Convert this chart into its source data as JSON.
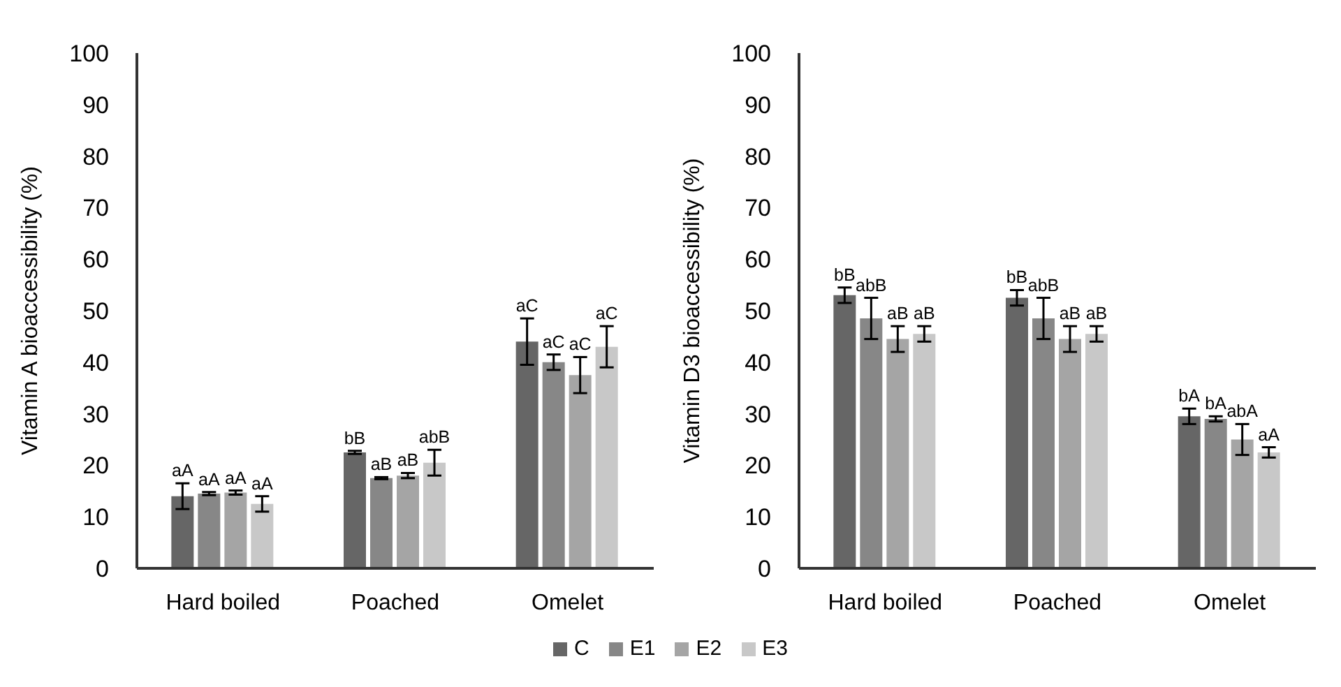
{
  "chart_data": [
    {
      "type": "bar",
      "ylabel": "Vitamin A bioaccessibility (%)",
      "categories": [
        "Hard boiled",
        "Poached",
        "Omelet"
      ],
      "ylim": [
        0,
        100
      ],
      "yticks": [
        0,
        10,
        20,
        30,
        40,
        50,
        60,
        70,
        80,
        90,
        100
      ],
      "legend": "bottom",
      "series": [
        {
          "name": "C",
          "color": "#666666",
          "values": [
            14,
            22.5,
            44
          ],
          "errors": [
            2.5,
            0.3,
            4.5
          ],
          "value_labels": [
            "aA",
            "bB",
            "aC"
          ]
        },
        {
          "name": "E1",
          "color": "#878787",
          "values": [
            14.5,
            17.5,
            40
          ],
          "errors": [
            0.3,
            0.2,
            1.5
          ],
          "value_labels": [
            "aA",
            "aB",
            "aC"
          ]
        },
        {
          "name": "E2",
          "color": "#a5a5a5",
          "values": [
            14.7,
            18,
            37.5
          ],
          "errors": [
            0.4,
            0.5,
            3.5
          ],
          "value_labels": [
            "aA",
            "aB",
            "aC"
          ]
        },
        {
          "name": "E3",
          "color": "#c8c8c8",
          "values": [
            12.5,
            20.5,
            43
          ],
          "errors": [
            1.5,
            2.5,
            4
          ],
          "value_labels": [
            "aA",
            "abB",
            "aC"
          ]
        }
      ]
    },
    {
      "type": "bar",
      "ylabel": "Vitamin D3 bioaccessibility (%)",
      "categories": [
        "Hard boiled",
        "Poached",
        "Omelet"
      ],
      "ylim": [
        0,
        100
      ],
      "yticks": [
        0,
        10,
        20,
        30,
        40,
        50,
        60,
        70,
        80,
        90,
        100
      ],
      "series": [
        {
          "name": "C",
          "color": "#666666",
          "values": [
            53,
            52.5,
            29.5
          ],
          "errors": [
            1.5,
            1.5,
            1.5
          ],
          "value_labels": [
            "bB",
            "bB",
            "bA"
          ]
        },
        {
          "name": "E1",
          "color": "#878787",
          "values": [
            48.5,
            48.5,
            29
          ],
          "errors": [
            4,
            4,
            0.5
          ],
          "value_labels": [
            "abB",
            "abB",
            "bA"
          ]
        },
        {
          "name": "E2",
          "color": "#a5a5a5",
          "values": [
            44.5,
            44.5,
            25
          ],
          "errors": [
            2.5,
            2.5,
            3
          ],
          "value_labels": [
            "aB",
            "aB",
            "abA"
          ]
        },
        {
          "name": "E3",
          "color": "#c8c8c8",
          "values": [
            45.5,
            45.5,
            22.5
          ],
          "errors": [
            1.5,
            1.5,
            1
          ],
          "value_labels": [
            "aB",
            "aB",
            "aA"
          ]
        }
      ]
    }
  ]
}
